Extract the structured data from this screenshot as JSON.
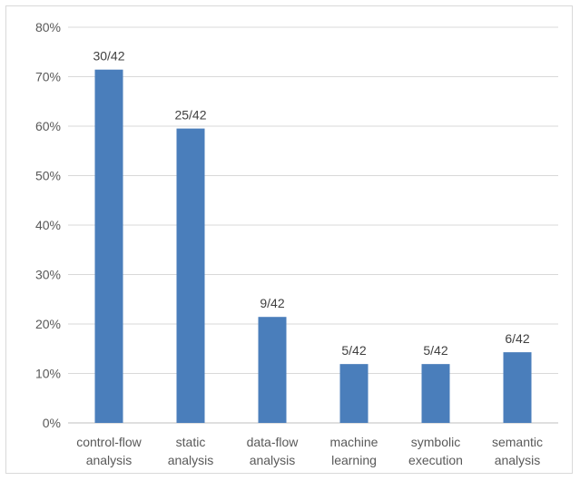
{
  "chart_data": {
    "type": "bar",
    "categories": [
      [
        "control-flow",
        "analysis"
      ],
      [
        "static",
        "analysis"
      ],
      [
        "data-flow",
        "analysis"
      ],
      [
        "machine",
        "learning"
      ],
      [
        "symbolic",
        "execution"
      ],
      [
        "semantic",
        "analysis"
      ]
    ],
    "values": [
      71.43,
      59.52,
      21.43,
      11.9,
      11.9,
      14.29
    ],
    "data_labels": [
      "30/42",
      "25/42",
      "9/42",
      "5/42",
      "5/42",
      "6/42"
    ],
    "yticks": [
      "0%",
      "10%",
      "20%",
      "30%",
      "40%",
      "50%",
      "60%",
      "70%",
      "80%"
    ],
    "ylim": [
      0,
      80
    ],
    "grid": true,
    "legend": "none",
    "title": "",
    "xlabel": "",
    "ylabel": "",
    "colors": {
      "bar": "#4a7ebb",
      "grid": "#d9d9d9",
      "axis_text": "#595959"
    }
  }
}
